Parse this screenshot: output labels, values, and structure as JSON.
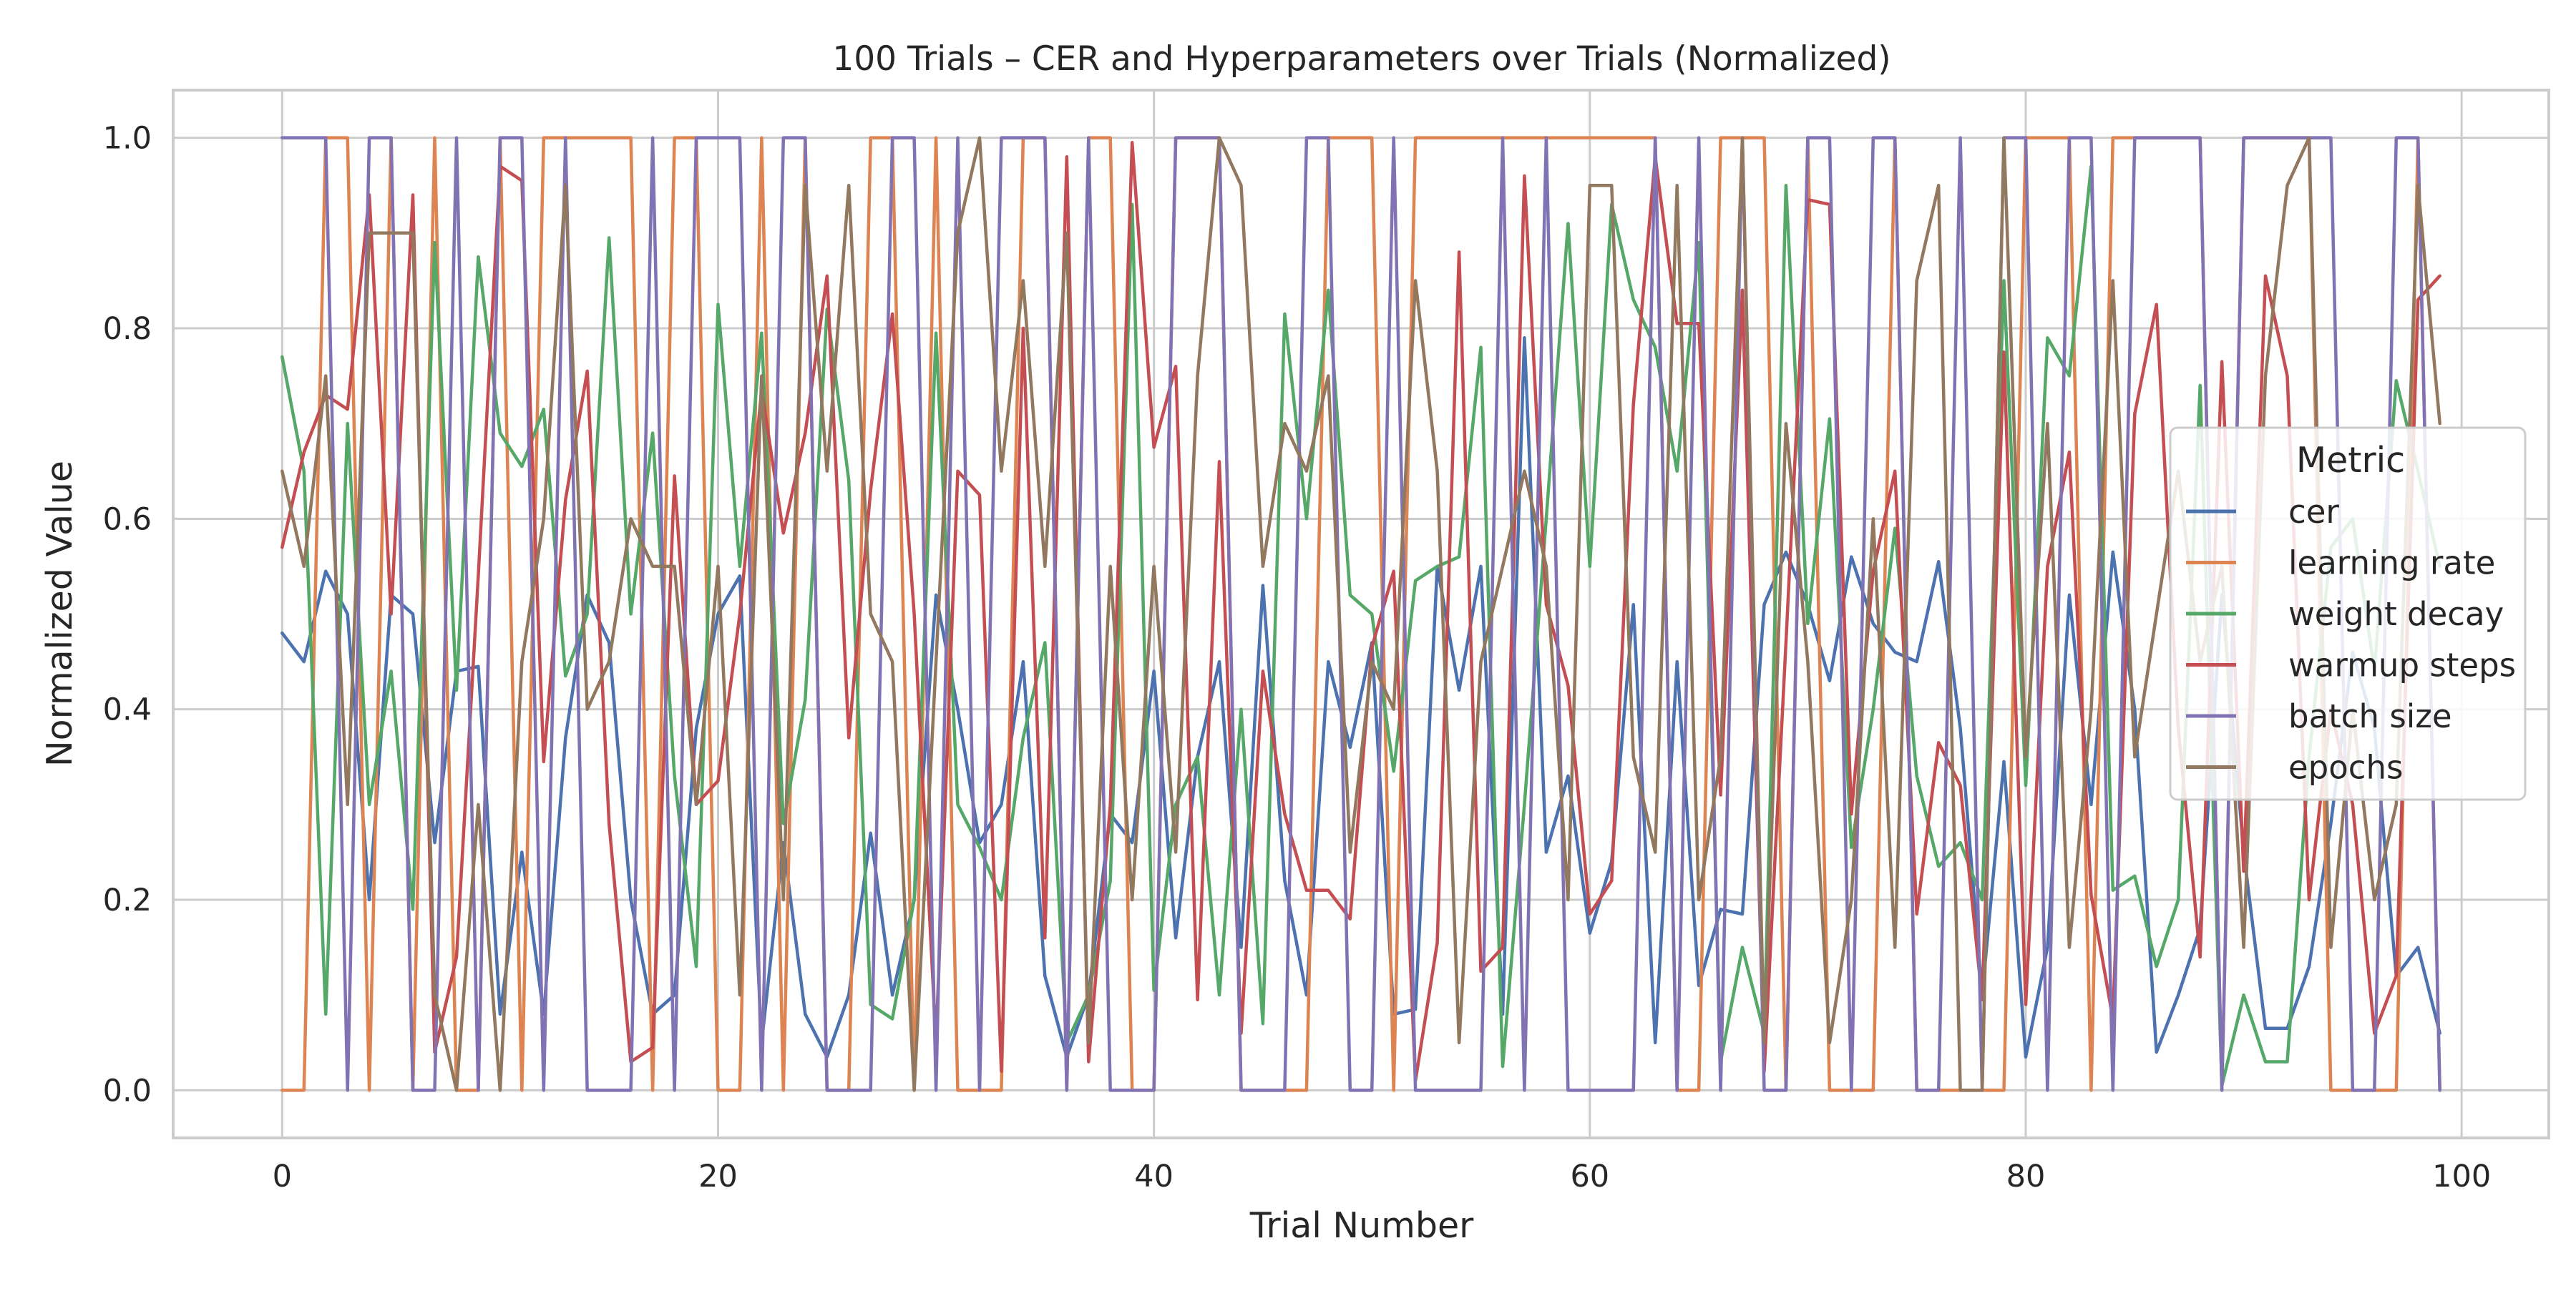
{
  "chart_data": {
    "type": "line",
    "title": "100 Trials – CER and Hyperparameters over Trials (Normalized)",
    "xlabel": "Trial Number",
    "ylabel": "Normalized Value",
    "xlim": [
      -5,
      104
    ],
    "ylim": [
      -0.05,
      1.05
    ],
    "xticks": [
      0,
      20,
      40,
      60,
      80,
      100
    ],
    "yticks": [
      0.0,
      0.2,
      0.4,
      0.6,
      0.8,
      1.0
    ],
    "xtick_labels": [
      "0",
      "20",
      "40",
      "60",
      "80",
      "100"
    ],
    "ytick_labels": [
      "0.0",
      "0.2",
      "0.4",
      "0.6",
      "0.8",
      "1.0"
    ],
    "grid": true,
    "legend": {
      "title": "Metric",
      "placement": "center-right"
    },
    "x": [
      0,
      1,
      2,
      3,
      4,
      5,
      6,
      7,
      8,
      9,
      10,
      11,
      12,
      13,
      14,
      15,
      16,
      17,
      18,
      19,
      20,
      21,
      22,
      23,
      24,
      25,
      26,
      27,
      28,
      29,
      30,
      31,
      32,
      33,
      34,
      35,
      36,
      37,
      38,
      39,
      40,
      41,
      42,
      43,
      44,
      45,
      46,
      47,
      48,
      49,
      50,
      51,
      52,
      53,
      54,
      55,
      56,
      57,
      58,
      59,
      60,
      61,
      62,
      63,
      64,
      65,
      66,
      67,
      68,
      69,
      70,
      71,
      72,
      73,
      74,
      75,
      76,
      77,
      78,
      79,
      80,
      81,
      82,
      83,
      84,
      85,
      86,
      87,
      88,
      89,
      90,
      91,
      92,
      93,
      94,
      95,
      96,
      97,
      98,
      99
    ],
    "series": [
      {
        "name": "cer",
        "color": "#4c72b0",
        "values": [
          0.48,
          0.45,
          0.545,
          0.5,
          0.2,
          0.52,
          0.5,
          0.26,
          0.44,
          0.445,
          0.08,
          0.25,
          0.08,
          0.37,
          0.52,
          0.47,
          0.2,
          0.08,
          0.1,
          0.38,
          0.5,
          0.54,
          0.05,
          0.26,
          0.08,
          0.035,
          0.1,
          0.27,
          0.1,
          0.2,
          0.52,
          0.4,
          0.26,
          0.3,
          0.45,
          0.12,
          0.035,
          0.1,
          0.29,
          0.26,
          0.44,
          0.16,
          0.35,
          0.45,
          0.15,
          0.53,
          0.22,
          0.1,
          0.45,
          0.36,
          0.47,
          0.08,
          0.085,
          0.55,
          0.42,
          0.55,
          0.08,
          0.79,
          0.25,
          0.33,
          0.165,
          0.24,
          0.51,
          0.05,
          0.45,
          0.11,
          0.19,
          0.185,
          0.51,
          0.565,
          0.51,
          0.43,
          0.56,
          0.49,
          0.46,
          0.45,
          0.555,
          0.38,
          0.1,
          0.345,
          0.035,
          0.15,
          0.52,
          0.3,
          0.565,
          0.4,
          0.04,
          0.1,
          0.17,
          0.52,
          0.25,
          0.065,
          0.065,
          0.13,
          0.28,
          0.46,
          0.38,
          0.12,
          0.15,
          0.06
        ]
      },
      {
        "name": "learning rate",
        "color": "#dd8452",
        "values": [
          0.0,
          0.0,
          1.0,
          1.0,
          0.0,
          1.0,
          0.0,
          1.0,
          0.0,
          0.0,
          1.0,
          0.0,
          1.0,
          1.0,
          1.0,
          1.0,
          1.0,
          0.0,
          1.0,
          1.0,
          0.0,
          0.0,
          1.0,
          0.0,
          1.0,
          0.0,
          0.0,
          1.0,
          1.0,
          0.0,
          1.0,
          0.0,
          0.0,
          0.0,
          1.0,
          1.0,
          0.0,
          1.0,
          1.0,
          0.0,
          0.0,
          1.0,
          1.0,
          1.0,
          0.0,
          0.0,
          0.0,
          0.0,
          1.0,
          1.0,
          1.0,
          0.0,
          1.0,
          1.0,
          1.0,
          1.0,
          1.0,
          1.0,
          1.0,
          1.0,
          1.0,
          1.0,
          1.0,
          1.0,
          0.0,
          0.0,
          1.0,
          1.0,
          1.0,
          0.0,
          1.0,
          0.0,
          0.0,
          0.0,
          1.0,
          0.0,
          0.0,
          0.0,
          0.0,
          0.0,
          1.0,
          1.0,
          1.0,
          0.0,
          1.0,
          1.0,
          1.0,
          1.0,
          1.0,
          0.0,
          1.0,
          1.0,
          1.0,
          1.0,
          0.0,
          0.0,
          0.0,
          0.0,
          1.0,
          0.0
        ]
      },
      {
        "name": "weight decay",
        "color": "#55a868",
        "values": [
          0.77,
          0.65,
          0.08,
          0.7,
          0.3,
          0.44,
          0.19,
          0.89,
          0.42,
          0.875,
          0.69,
          0.655,
          0.715,
          0.435,
          0.5,
          0.895,
          0.5,
          0.69,
          0.33,
          0.13,
          0.825,
          0.55,
          0.795,
          0.28,
          0.41,
          0.82,
          0.64,
          0.09,
          0.075,
          0.2,
          0.795,
          0.3,
          0.255,
          0.2,
          0.37,
          0.47,
          0.05,
          0.1,
          0.22,
          0.93,
          0.105,
          0.3,
          0.35,
          0.1,
          0.4,
          0.07,
          0.815,
          0.6,
          0.84,
          0.52,
          0.5,
          0.335,
          0.535,
          0.55,
          0.56,
          0.78,
          0.025,
          0.3,
          0.6,
          0.91,
          0.55,
          0.93,
          0.83,
          0.78,
          0.65,
          0.89,
          0.03,
          0.15,
          0.06,
          0.95,
          0.49,
          0.705,
          0.255,
          0.4,
          0.59,
          0.33,
          0.235,
          0.26,
          0.2,
          0.85,
          0.32,
          0.79,
          0.75,
          0.97,
          0.21,
          0.225,
          0.13,
          0.2,
          0.74,
          0.005,
          0.1,
          0.03,
          0.03,
          0.35,
          0.57,
          0.6,
          0.44,
          0.745,
          0.65,
          0.55
        ]
      },
      {
        "name": "warmup steps",
        "color": "#c44e52",
        "values": [
          0.57,
          0.67,
          0.73,
          0.715,
          0.94,
          0.5,
          0.94,
          0.04,
          0.14,
          0.54,
          0.97,
          0.955,
          0.345,
          0.62,
          0.755,
          0.28,
          0.03,
          0.045,
          0.645,
          0.3,
          0.325,
          0.5,
          0.735,
          0.585,
          0.69,
          0.855,
          0.37,
          0.63,
          0.815,
          0.5,
          0.05,
          0.65,
          0.625,
          0.02,
          0.8,
          0.16,
          0.98,
          0.03,
          0.3,
          0.995,
          0.675,
          0.76,
          0.095,
          0.66,
          0.06,
          0.44,
          0.29,
          0.21,
          0.21,
          0.18,
          0.465,
          0.545,
          0.01,
          0.155,
          0.88,
          0.125,
          0.15,
          0.96,
          0.51,
          0.425,
          0.185,
          0.22,
          0.72,
          0.98,
          0.805,
          0.805,
          0.31,
          0.84,
          0.02,
          0.47,
          0.935,
          0.93,
          0.29,
          0.545,
          0.65,
          0.185,
          0.365,
          0.32,
          0.095,
          0.775,
          0.09,
          0.55,
          0.67,
          0.205,
          0.075,
          0.71,
          0.825,
          0.38,
          0.14,
          0.765,
          0.23,
          0.855,
          0.75,
          0.2,
          0.4,
          0.3,
          0.06,
          0.12,
          0.83,
          0.855
        ]
      },
      {
        "name": "batch size",
        "color": "#8172b3",
        "values": [
          1.0,
          1.0,
          1.0,
          0.0,
          1.0,
          1.0,
          0.0,
          0.0,
          1.0,
          0.0,
          1.0,
          1.0,
          0.0,
          1.0,
          0.0,
          0.0,
          0.0,
          1.0,
          0.0,
          1.0,
          1.0,
          1.0,
          0.0,
          1.0,
          1.0,
          0.0,
          0.0,
          0.0,
          1.0,
          1.0,
          0.0,
          1.0,
          0.0,
          1.0,
          1.0,
          1.0,
          0.0,
          1.0,
          0.0,
          0.0,
          0.0,
          1.0,
          1.0,
          1.0,
          0.0,
          0.0,
          0.0,
          1.0,
          1.0,
          0.0,
          0.0,
          1.0,
          0.0,
          0.0,
          0.0,
          0.0,
          1.0,
          0.0,
          1.0,
          0.0,
          0.0,
          0.0,
          0.0,
          1.0,
          0.0,
          1.0,
          0.0,
          1.0,
          0.0,
          0.0,
          1.0,
          1.0,
          0.0,
          1.0,
          1.0,
          0.0,
          0.0,
          1.0,
          0.0,
          1.0,
          1.0,
          0.0,
          1.0,
          1.0,
          0.0,
          1.0,
          1.0,
          1.0,
          1.0,
          0.0,
          1.0,
          1.0,
          1.0,
          1.0,
          1.0,
          0.0,
          0.0,
          1.0,
          1.0,
          0.0
        ]
      },
      {
        "name": "epochs",
        "color": "#937860",
        "values": [
          0.65,
          0.55,
          0.75,
          0.3,
          0.9,
          0.9,
          0.9,
          0.1,
          0.0,
          0.3,
          0.0,
          0.45,
          0.6,
          0.95,
          0.4,
          0.45,
          0.6,
          0.55,
          0.55,
          0.3,
          0.55,
          0.1,
          0.75,
          0.2,
          0.95,
          0.65,
          0.95,
          0.5,
          0.45,
          0.0,
          0.45,
          0.9,
          1.0,
          0.65,
          0.85,
          0.55,
          0.9,
          0.05,
          0.55,
          0.2,
          0.55,
          0.25,
          0.75,
          1.0,
          0.95,
          0.55,
          0.7,
          0.65,
          0.75,
          0.25,
          0.45,
          0.4,
          0.85,
          0.65,
          0.05,
          0.45,
          0.55,
          0.65,
          0.55,
          0.2,
          0.95,
          0.95,
          0.35,
          0.25,
          0.95,
          0.2,
          0.35,
          1.0,
          0.05,
          0.7,
          0.45,
          0.05,
          0.2,
          0.6,
          0.15,
          0.85,
          0.95,
          0.0,
          0.0,
          1.0,
          0.35,
          0.7,
          0.15,
          0.4,
          0.85,
          0.35,
          0.5,
          0.65,
          0.45,
          0.55,
          0.15,
          0.75,
          0.95,
          1.0,
          0.15,
          0.4,
          0.2,
          0.3,
          0.95,
          0.7
        ]
      }
    ]
  }
}
